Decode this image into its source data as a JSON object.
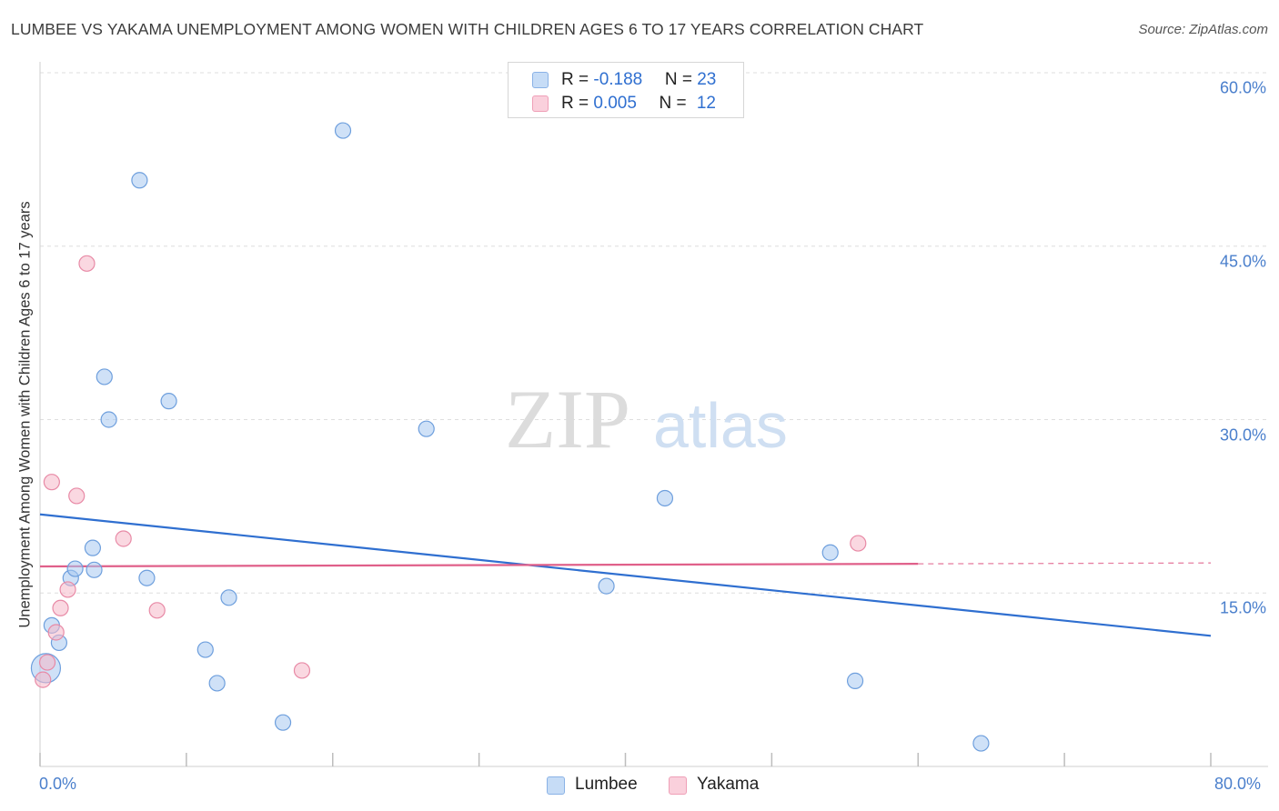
{
  "header": {
    "title": "LUMBEE VS YAKAMA UNEMPLOYMENT AMONG WOMEN WITH CHILDREN AGES 6 TO 17 YEARS CORRELATION CHART",
    "source": "Source: ZipAtlas.com"
  },
  "watermark": {
    "zip": "ZIP",
    "atlas": "atlas"
  },
  "legend": {
    "rows": [
      {
        "r_label": "R = ",
        "r_value": "-0.188",
        "n_label": "N = ",
        "n_value": "23",
        "color": "#a8c8f0"
      },
      {
        "r_label": "R = ",
        "r_value": "0.005",
        "n_label": "N = ",
        "n_value": "12",
        "color": "#f6b8c8"
      }
    ]
  },
  "bottom_legend": {
    "lumbee": "Lumbee",
    "yakama": "Yakama"
  },
  "chart_data": {
    "type": "scatter",
    "title": "LUMBEE VS YAKAMA UNEMPLOYMENT AMONG WOMEN WITH CHILDREN AGES 6 TO 17 YEARS CORRELATION CHART",
    "xlabel": "",
    "ylabel": "Unemployment Among Women with Children Ages 6 to 17 years",
    "xlim": [
      0,
      80
    ],
    "ylim": [
      0,
      60
    ],
    "x_tick_labels": [
      "0.0%",
      "80.0%"
    ],
    "y_ticks": [
      15,
      30,
      45,
      60
    ],
    "y_tick_labels": [
      "15.0%",
      "30.0%",
      "45.0%",
      "60.0%"
    ],
    "grid": true,
    "series": [
      {
        "name": "Lumbee",
        "color": "#a8c8f0",
        "stroke": "#6e9fdd",
        "line_color": "#2f6fd0",
        "trend": {
          "x": [
            0,
            80
          ],
          "y": [
            21.8,
            11.3
          ],
          "dashed_from": null
        },
        "points": [
          {
            "x": 0.4,
            "y": 8.5,
            "big": true
          },
          {
            "x": 0.8,
            "y": 12.2
          },
          {
            "x": 1.3,
            "y": 10.7
          },
          {
            "x": 2.1,
            "y": 16.3
          },
          {
            "x": 2.4,
            "y": 17.1
          },
          {
            "x": 3.6,
            "y": 18.9
          },
          {
            "x": 3.7,
            "y": 17.0
          },
          {
            "x": 4.4,
            "y": 33.7
          },
          {
            "x": 4.7,
            "y": 30.0
          },
          {
            "x": 6.8,
            "y": 50.7
          },
          {
            "x": 7.3,
            "y": 16.3
          },
          {
            "x": 8.8,
            "y": 31.6
          },
          {
            "x": 11.3,
            "y": 10.1
          },
          {
            "x": 12.1,
            "y": 7.2
          },
          {
            "x": 12.9,
            "y": 14.6
          },
          {
            "x": 16.6,
            "y": 3.8
          },
          {
            "x": 20.7,
            "y": 55.0
          },
          {
            "x": 26.4,
            "y": 29.2
          },
          {
            "x": 38.7,
            "y": 15.6
          },
          {
            "x": 42.7,
            "y": 23.2
          },
          {
            "x": 54.0,
            "y": 18.5
          },
          {
            "x": 55.7,
            "y": 7.4
          },
          {
            "x": 64.3,
            "y": 2.0
          }
        ]
      },
      {
        "name": "Yakama",
        "color": "#f6b8c8",
        "stroke": "#e88aa6",
        "line_color": "#e0608a",
        "trend": {
          "x": [
            0,
            80
          ],
          "y": [
            17.3,
            17.6
          ],
          "dashed_from": 60
        },
        "points": [
          {
            "x": 0.2,
            "y": 7.5
          },
          {
            "x": 0.5,
            "y": 9.0
          },
          {
            "x": 0.8,
            "y": 24.6
          },
          {
            "x": 1.1,
            "y": 11.6
          },
          {
            "x": 1.4,
            "y": 13.7
          },
          {
            "x": 1.9,
            "y": 15.3
          },
          {
            "x": 2.5,
            "y": 23.4
          },
          {
            "x": 3.2,
            "y": 43.5
          },
          {
            "x": 5.7,
            "y": 19.7
          },
          {
            "x": 8.0,
            "y": 13.5
          },
          {
            "x": 17.9,
            "y": 8.3
          },
          {
            "x": 55.9,
            "y": 19.3
          }
        ]
      }
    ]
  }
}
